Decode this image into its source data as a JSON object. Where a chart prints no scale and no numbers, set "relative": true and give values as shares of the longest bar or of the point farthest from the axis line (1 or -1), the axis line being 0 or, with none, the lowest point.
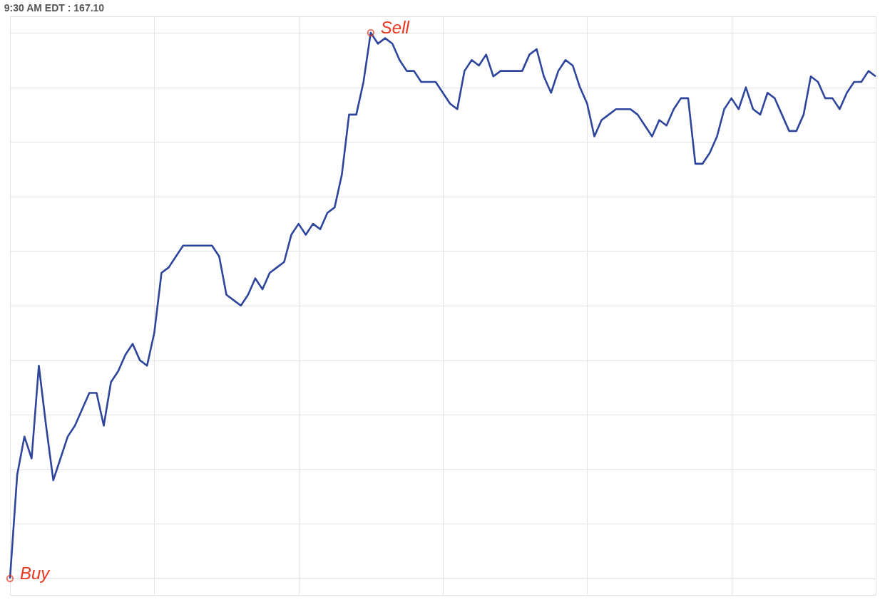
{
  "chart_data": {
    "type": "line",
    "title": "9:30 AM EDT : 167.10",
    "relative": true,
    "grid": true,
    "line_style": "solid",
    "categories": [
      null,
      null,
      null,
      null,
      null,
      null,
      null,
      null,
      null,
      null,
      null,
      null,
      null,
      null,
      null,
      null,
      null,
      null,
      null,
      null,
      null,
      null,
      null,
      null,
      null,
      null,
      null,
      null,
      null,
      null,
      null,
      null,
      null,
      null,
      null,
      null,
      null,
      null,
      null,
      null,
      null,
      null,
      null,
      null,
      null,
      null,
      null,
      null,
      null,
      null,
      null,
      null,
      null,
      null,
      null,
      null,
      null,
      null,
      null,
      null,
      null,
      null,
      null,
      null,
      null,
      null,
      null,
      null,
      null,
      null,
      null,
      null,
      null,
      null,
      null,
      null,
      null,
      null,
      null,
      null,
      null,
      null,
      null,
      null,
      null,
      null,
      null,
      null,
      null,
      null,
      null,
      null,
      null,
      null,
      null,
      null,
      null,
      null,
      null,
      null,
      null,
      null,
      null,
      null,
      null,
      null,
      null,
      null,
      null,
      null,
      null,
      null,
      null,
      null,
      null,
      null,
      null,
      null,
      null,
      null,
      null
    ],
    "series": [
      {
        "color": "#2e459c",
        "values": [
          0,
          0.19,
          0.26,
          0.22,
          0.39,
          0.28,
          0.18,
          0.22,
          0.26,
          0.28,
          0.31,
          0.34,
          0.34,
          0.28,
          0.36,
          0.38,
          0.41,
          0.43,
          0.4,
          0.39,
          0.45,
          0.56,
          0.57,
          0.59,
          0.61,
          0.61,
          0.61,
          0.61,
          0.61,
          0.59,
          0.52,
          0.51,
          0.5,
          0.52,
          0.55,
          0.53,
          0.56,
          0.57,
          0.58,
          0.63,
          0.65,
          0.63,
          0.65,
          0.64,
          0.67,
          0.68,
          0.74,
          0.85,
          0.85,
          0.91,
          1,
          0.98,
          0.99,
          0.98,
          0.95,
          0.93,
          0.93,
          0.91,
          0.91,
          0.91,
          0.89,
          0.87,
          0.86,
          0.93,
          0.95,
          0.94,
          0.96,
          0.92,
          0.93,
          0.93,
          0.93,
          0.93,
          0.96,
          0.97,
          0.92,
          0.89,
          0.93,
          0.95,
          0.94,
          0.9,
          0.87,
          0.81,
          0.84,
          0.85,
          0.86,
          0.86,
          0.86,
          0.85,
          0.83,
          0.81,
          0.84,
          0.83,
          0.86,
          0.88,
          0.88,
          0.76,
          0.76,
          0.78,
          0.81,
          0.86,
          0.88,
          0.86,
          0.9,
          0.86,
          0.85,
          0.89,
          0.88,
          0.85,
          0.82,
          0.82,
          0.85,
          0.92,
          0.91,
          0.88,
          0.88,
          0.86,
          0.89,
          0.91,
          0.91,
          0.93,
          0.92
        ]
      }
    ],
    "annotations": [
      "Buy",
      "Sell"
    ]
  }
}
